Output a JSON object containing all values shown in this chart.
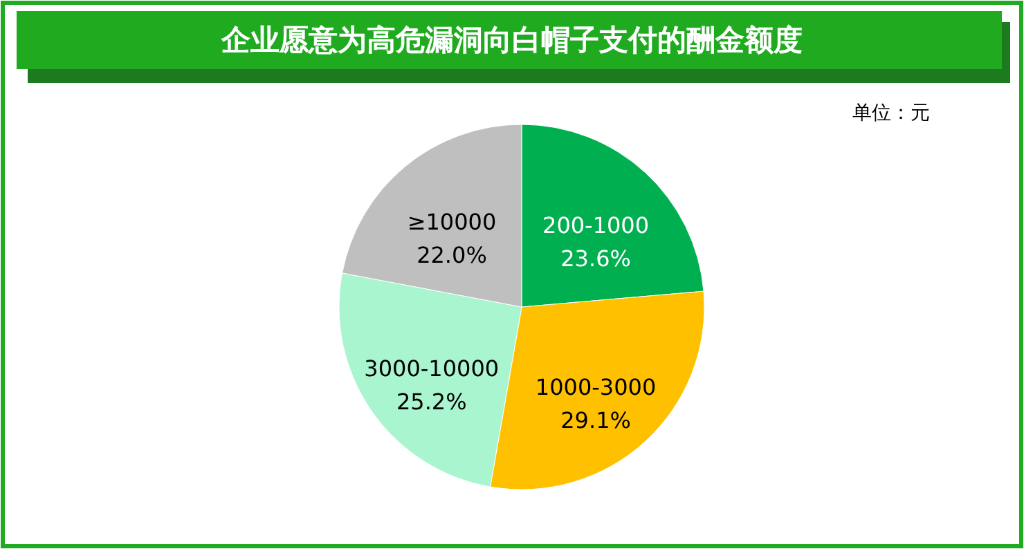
{
  "chart_data": {
    "type": "pie",
    "title": "企业愿意为高危漏洞向白帽子支付的酬金额度",
    "annotations": [
      "单位：元"
    ],
    "categories": [
      "200-1000",
      "1000-3000",
      "3000-10000",
      "≥10000"
    ],
    "values": [
      23.6,
      29.1,
      25.2,
      22.0
    ],
    "value_labels": [
      "23.6%",
      "29.1%",
      "25.2%",
      "22.0%"
    ],
    "colors": [
      "#00b050",
      "#ffc000",
      "#a9f5d0",
      "#bfbfbf"
    ]
  }
}
